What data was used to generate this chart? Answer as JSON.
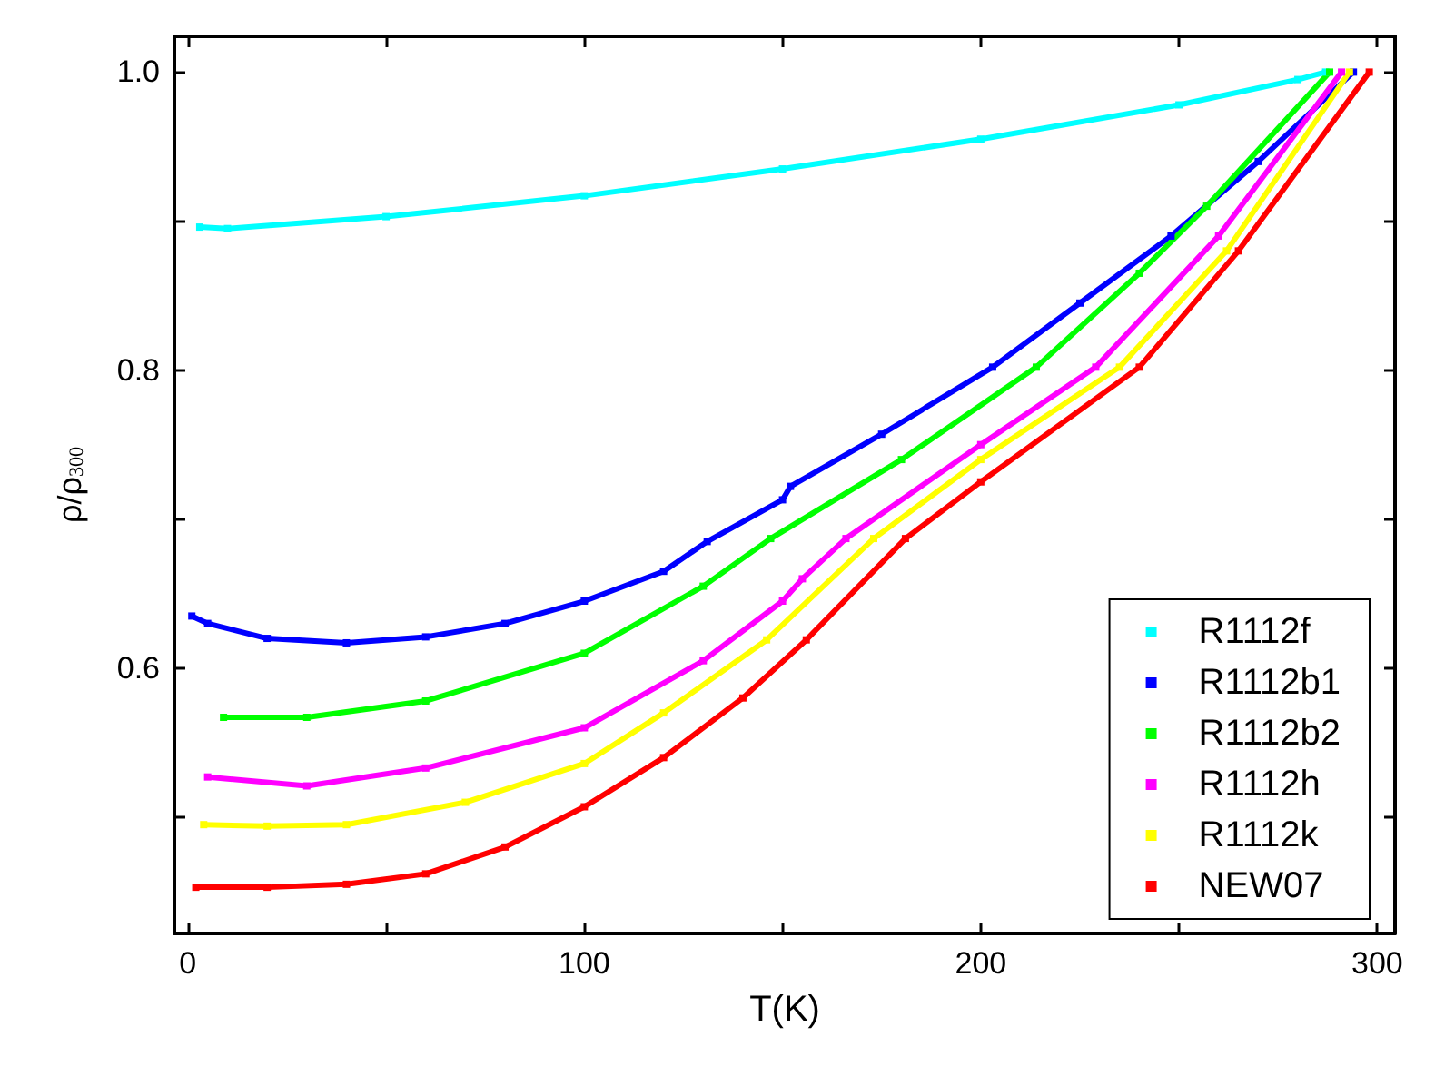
{
  "chart_data": {
    "type": "line",
    "xlabel": "T(K)",
    "ylabel": "ρ/ρ$_{300}$",
    "xlim": [
      -3.4,
      304.5
    ],
    "ylim": [
      0.422,
      1.024
    ],
    "xticks": [
      {
        "value": 0,
        "label": "0"
      },
      {
        "value": 50,
        "label": null
      },
      100,
      {
        "value": 150,
        "label": null
      },
      200,
      {
        "value": 250,
        "label": null
      },
      300
    ],
    "yticks": [
      {
        "value": 0.5,
        "label": null
      },
      0.6,
      {
        "value": 0.7,
        "label": null
      },
      0.8,
      {
        "value": 0.9,
        "label": null
      },
      {
        "value": 1.0,
        "label": "1.0"
      }
    ],
    "marker": "square",
    "legend": "bottom right",
    "grid": false,
    "series": [
      {
        "name": "R1112f",
        "color": "#00ffff",
        "x": [
          3,
          10,
          50,
          100,
          150,
          200,
          250,
          280,
          287
        ],
        "values": [
          0.896,
          0.895,
          0.903,
          0.917,
          0.935,
          0.955,
          0.978,
          0.995,
          1.0
        ]
      },
      {
        "name": "R1112b1",
        "color": "#0000ff",
        "x": [
          1,
          5,
          20,
          40,
          60,
          80,
          100,
          120,
          131,
          150,
          152,
          175,
          203,
          225,
          248,
          270,
          294
        ],
        "values": [
          0.635,
          0.63,
          0.62,
          0.617,
          0.621,
          0.63,
          0.645,
          0.665,
          0.685,
          0.713,
          0.722,
          0.757,
          0.802,
          0.845,
          0.89,
          0.94,
          1.0
        ]
      },
      {
        "name": "R1112b2",
        "color": "#00ff00",
        "x": [
          9,
          30,
          60,
          100,
          130,
          147,
          180,
          214,
          240,
          257,
          288
        ],
        "values": [
          0.567,
          0.567,
          0.578,
          0.61,
          0.655,
          0.687,
          0.74,
          0.802,
          0.865,
          0.91,
          1.0
        ]
      },
      {
        "name": "R1112h",
        "color": "#ff00ff",
        "x": [
          5,
          30,
          60,
          100,
          130,
          150,
          155,
          166,
          200,
          229,
          260,
          291
        ],
        "values": [
          0.527,
          0.521,
          0.533,
          0.56,
          0.605,
          0.645,
          0.66,
          0.687,
          0.75,
          0.802,
          0.89,
          1.0
        ]
      },
      {
        "name": "R1112k",
        "color": "#ffff00",
        "x": [
          4,
          20,
          40,
          70,
          100,
          120,
          146,
          173,
          200,
          235,
          262,
          293
        ],
        "values": [
          0.495,
          0.494,
          0.495,
          0.51,
          0.536,
          0.57,
          0.619,
          0.687,
          0.74,
          0.802,
          0.88,
          1.0
        ]
      },
      {
        "name": "NEW07",
        "color": "#ff0000",
        "x": [
          2,
          20,
          40,
          60,
          80,
          100,
          120,
          140,
          156,
          181,
          200,
          240,
          265,
          298
        ],
        "values": [
          0.453,
          0.453,
          0.455,
          0.462,
          0.48,
          0.507,
          0.54,
          0.58,
          0.619,
          0.687,
          0.725,
          0.802,
          0.88,
          1.0
        ]
      }
    ]
  }
}
